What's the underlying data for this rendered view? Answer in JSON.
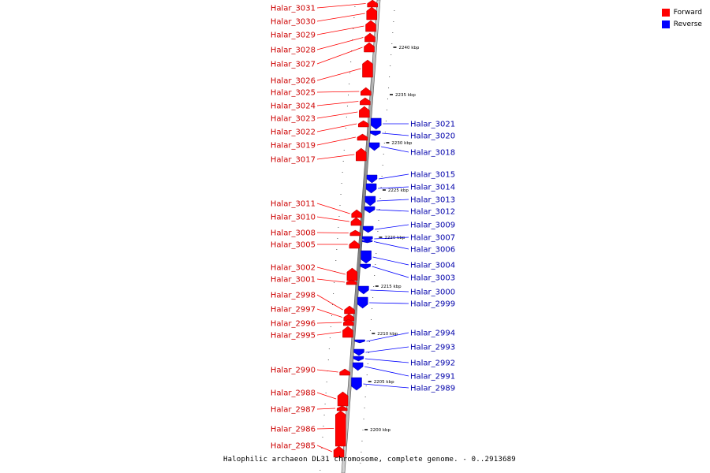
{
  "legend": [
    {
      "label": "Forward",
      "color": "#ff0000"
    },
    {
      "label": "Reverse",
      "color": "#0000ff"
    }
  ],
  "caption": "Halophilic archaeon DL31 chromosome, complete genome. - 0..2913689",
  "colors": {
    "forward": "#ff0000",
    "reverse": "#0000ff",
    "forward_label": "#cc0000",
    "reverse_label": "#0000aa"
  },
  "ticks": [
    {
      "label": "2240 kbp"
    },
    {
      "label": "2235 kbp"
    },
    {
      "label": "2230 kbp"
    },
    {
      "label": "2225 kbp"
    },
    {
      "label": "2220 kbp"
    },
    {
      "label": "2215 kbp"
    },
    {
      "label": "2210 kbp"
    },
    {
      "label": "2205 kbp"
    },
    {
      "label": "2200 kbp"
    }
  ],
  "forward_genes": [
    "Halar_3031",
    "Halar_3030",
    "Halar_3029",
    "Halar_3028",
    "Halar_3027",
    "Halar_3026",
    "Halar_3025",
    "Halar_3024",
    "Halar_3023",
    "Halar_3022",
    "Halar_3019",
    "Halar_3017",
    "Halar_3011",
    "Halar_3010",
    "Halar_3008",
    "Halar_3005",
    "Halar_3002",
    "Halar_3001",
    "Halar_2998",
    "Halar_2997",
    "Halar_2996",
    "Halar_2995",
    "Halar_2990",
    "Halar_2988",
    "Halar_2987",
    "Halar_2986",
    "Halar_2985"
  ],
  "reverse_genes": [
    "Halar_3021",
    "Halar_3020",
    "Halar_3018",
    "Halar_3015",
    "Halar_3014",
    "Halar_3013",
    "Halar_3012",
    "Halar_3009",
    "Halar_3007",
    "Halar_3006",
    "Halar_3004",
    "Halar_3003",
    "Halar_3000",
    "Halar_2999",
    "Halar_2994",
    "Halar_2993",
    "Halar_2992",
    "Halar_2991",
    "Halar_2989"
  ]
}
